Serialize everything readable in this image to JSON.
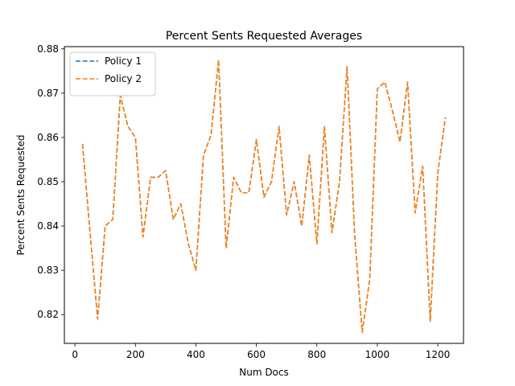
{
  "chart_data": {
    "type": "line",
    "title": "Percent Sents Requested Averages",
    "xlabel": "Num Docs",
    "ylabel": "Percent Sents Requested",
    "xlim": [
      -35,
      1285
    ],
    "ylim": [
      0.8135,
      0.8805
    ],
    "xticks": [
      0,
      200,
      400,
      600,
      800,
      1000,
      1200
    ],
    "yticks": [
      0.82,
      0.83,
      0.84,
      0.85,
      0.86,
      0.87,
      0.88
    ],
    "legend_position": "top-left",
    "grid": false,
    "series": [
      {
        "name": "Policy 1",
        "color": "#1f77b4",
        "x": [
          25,
          50,
          75,
          100,
          125,
          150,
          175,
          200,
          225,
          250,
          275,
          300,
          325,
          350,
          375,
          400,
          425,
          450,
          475,
          500,
          525,
          550,
          575,
          600,
          625,
          650,
          675,
          700,
          725,
          750,
          775,
          800,
          825,
          850,
          875,
          900,
          925,
          950,
          975,
          1000,
          1025,
          1050,
          1075,
          1100,
          1125,
          1150,
          1175,
          1200,
          1225
        ],
        "y": [
          0.8585,
          0.8385,
          0.819,
          0.84,
          0.8415,
          0.8695,
          0.8625,
          0.86,
          0.8375,
          0.851,
          0.851,
          0.8525,
          0.8415,
          0.845,
          0.836,
          0.83,
          0.856,
          0.8605,
          0.8775,
          0.835,
          0.851,
          0.8475,
          0.8475,
          0.8595,
          0.8465,
          0.85,
          0.8625,
          0.8425,
          0.85,
          0.84,
          0.856,
          0.836,
          0.8625,
          0.8385,
          0.85,
          0.876,
          0.838,
          0.816,
          0.828,
          0.871,
          0.8725,
          0.866,
          0.859,
          0.8725,
          0.843,
          0.8535,
          0.8185,
          0.852,
          0.8645
        ]
      },
      {
        "name": "Policy 2",
        "color": "#ff7f0e",
        "x": [
          25,
          50,
          75,
          100,
          125,
          150,
          175,
          200,
          225,
          250,
          275,
          300,
          325,
          350,
          375,
          400,
          425,
          450,
          475,
          500,
          525,
          550,
          575,
          600,
          625,
          650,
          675,
          700,
          725,
          750,
          775,
          800,
          825,
          850,
          875,
          900,
          925,
          950,
          975,
          1000,
          1025,
          1050,
          1075,
          1100,
          1125,
          1150,
          1175,
          1200,
          1225
        ],
        "y": [
          0.8585,
          0.8385,
          0.819,
          0.84,
          0.8415,
          0.8695,
          0.8625,
          0.86,
          0.8375,
          0.851,
          0.851,
          0.8525,
          0.8415,
          0.845,
          0.836,
          0.83,
          0.856,
          0.8605,
          0.8775,
          0.835,
          0.851,
          0.8475,
          0.8475,
          0.8595,
          0.8465,
          0.85,
          0.8625,
          0.8425,
          0.85,
          0.84,
          0.856,
          0.836,
          0.8625,
          0.8385,
          0.85,
          0.876,
          0.838,
          0.816,
          0.828,
          0.871,
          0.8725,
          0.866,
          0.859,
          0.8725,
          0.843,
          0.8535,
          0.8185,
          0.852,
          0.8645
        ]
      }
    ]
  }
}
